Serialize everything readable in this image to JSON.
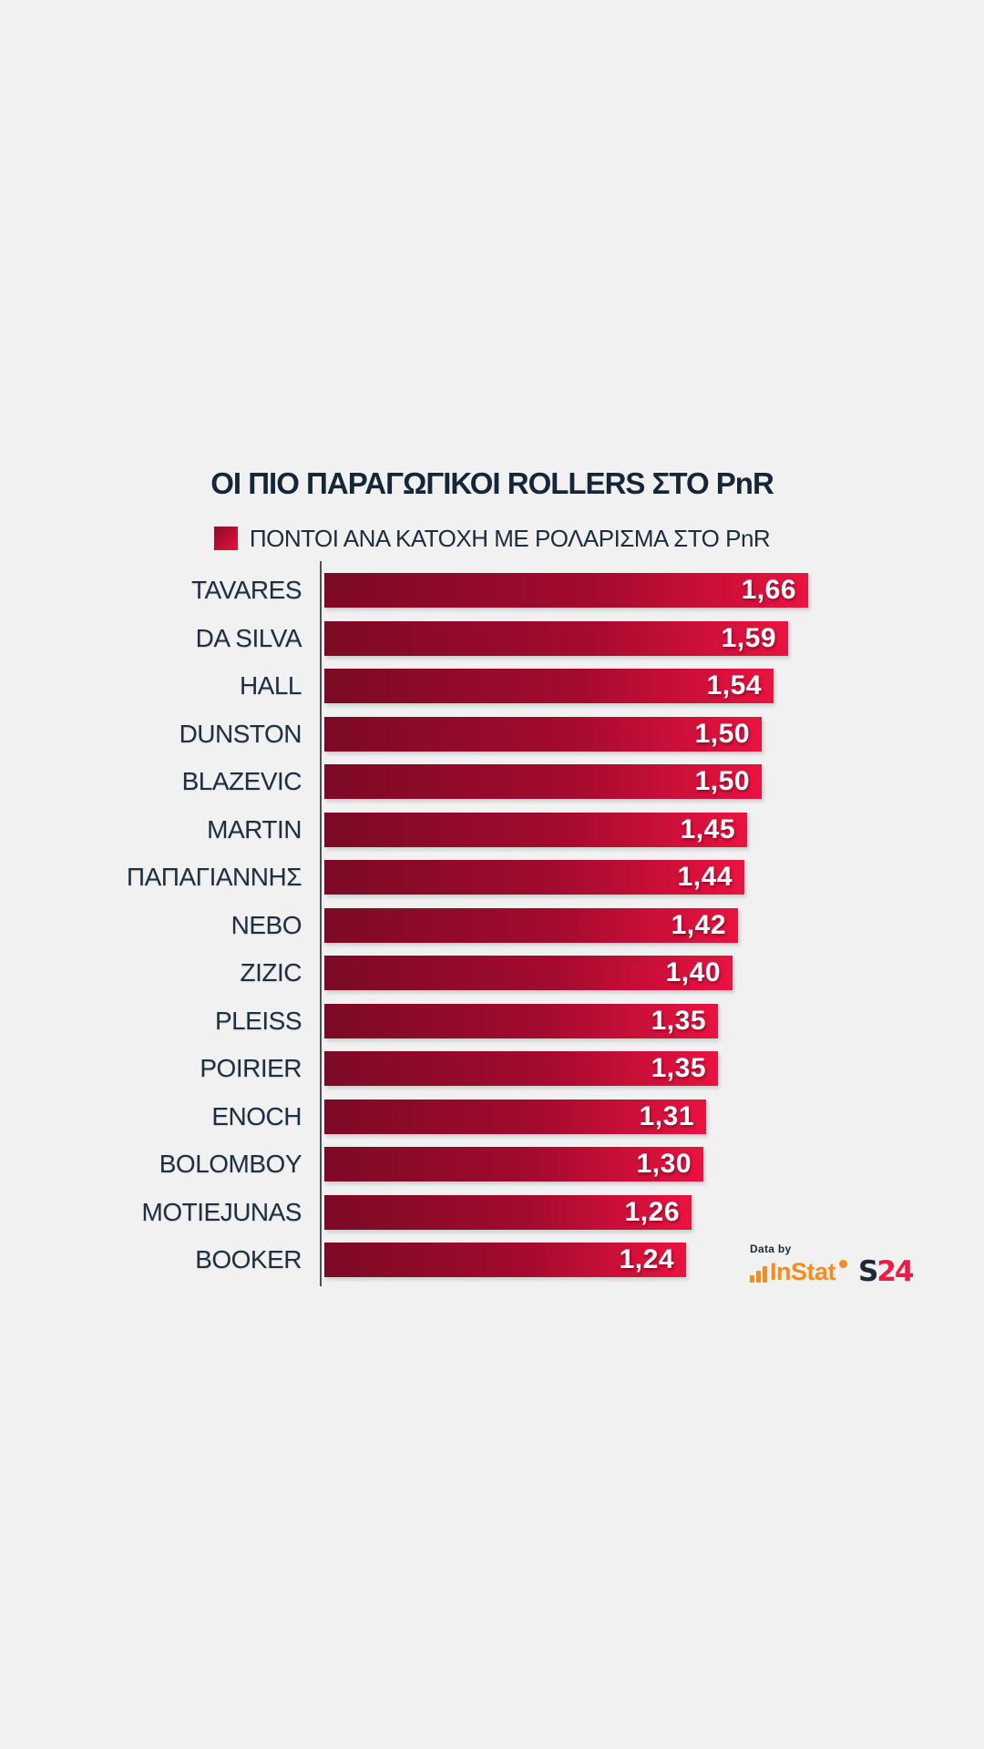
{
  "page": {
    "background": "#f1f1f2"
  },
  "header": {
    "title": "ΟΙ ΠΙΟ ΠΑΡΑΓΩΓΙΚΟΙ ROLLERS ΣΤΟ PnR"
  },
  "legend": {
    "label": "ΠΟΝΤΟΙ ΑΝΑ ΚΑΤΟΧΗ ΜΕ ΡΟΛΑΡΙΣΜΑ ΣΤΟ PnR",
    "swatch_gradient": [
      "#8c0a28",
      "#e8123e"
    ]
  },
  "chart_data": {
    "type": "bar",
    "orientation": "horizontal",
    "title": "ΟΙ ΠΙΟ ΠΑΡΑΓΩΓΙΚΟΙ ROLLERS ΣΤΟ PnR",
    "legend_label": "ΠΟΝΤΟΙ ΑΝΑ ΚΑΤΟΧΗ ΜΕ ΡΟΛΑΡΙΣΜΑ ΣΤΟ PnR",
    "legend_position": "top-center",
    "grid": false,
    "categories": [
      "TAVARES",
      "DA SILVA",
      "HALL",
      "DUNSTON",
      "BLAZEVIC",
      "MARTIN",
      "ΠΑΠΑΓΙΑΝΝΗΣ",
      "NEBO",
      "ZIZIC",
      "PLEISS",
      "POIRIER",
      "ENOCH",
      "BOLOMBOY",
      "MOTIEJUNAS",
      "BOOKER"
    ],
    "values": [
      1.66,
      1.59,
      1.54,
      1.5,
      1.5,
      1.45,
      1.44,
      1.42,
      1.4,
      1.35,
      1.35,
      1.31,
      1.3,
      1.26,
      1.24
    ],
    "value_labels": [
      "1,66",
      "1,59",
      "1,54",
      "1,50",
      "1,50",
      "1,45",
      "1,44",
      "1,42",
      "1,40",
      "1,35",
      "1,35",
      "1,31",
      "1,30",
      "1,26",
      "1,24"
    ],
    "xlim": [
      0,
      1.66
    ],
    "bar_gradient": [
      "#7c0a24",
      "#ea1340"
    ],
    "label_color": "#1d2f41",
    "value_text_color": "#ffffff"
  },
  "branding": {
    "data_by": "Data by",
    "instat_label": "InStat",
    "s24": {
      "s": "S",
      "number": "24"
    },
    "colors": {
      "instat_orange": "#f68b1f",
      "s24_navy": "#1d2a3a",
      "s24_red": "#ef1a45"
    }
  }
}
